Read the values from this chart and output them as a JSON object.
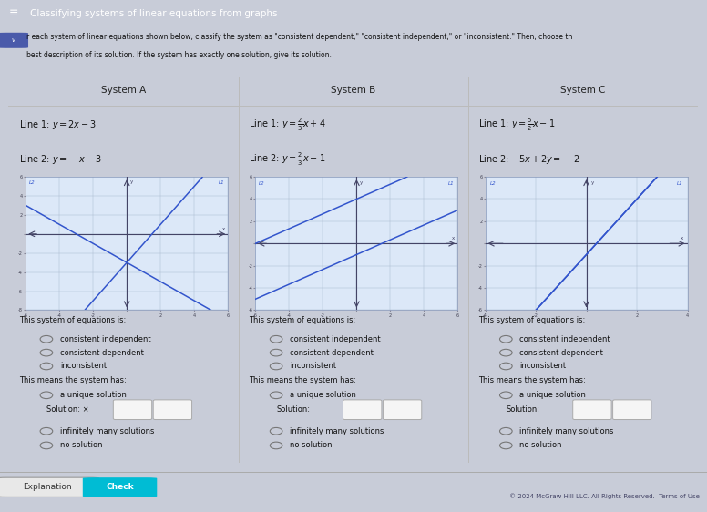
{
  "title": "Classifying systems of linear equations from graphs",
  "title_bar_color": "#2d3b8a",
  "title_text_color": "#ffffff",
  "instr_bg": "#b8c0d8",
  "instr_check_color": "#4a5aaa",
  "main_bg": "#c8ccd8",
  "table_bg": "#ffffff",
  "table_border": "#bbbbbb",
  "systems": [
    {
      "title": "System A",
      "line1_label": "Line 1: $y=2x-3$",
      "line2_label": "Line 2: $y=-x-3$",
      "line1_slope": 2.0,
      "line1_intercept": -3.0,
      "line2_slope": -1.0,
      "line2_intercept": -3.0,
      "graph_xlim": [
        -6,
        6
      ],
      "graph_ylim": [
        -8,
        6
      ],
      "graph_xticks": [
        -6,
        -4,
        -2,
        0,
        2,
        4,
        6
      ],
      "graph_yticks": [
        -8,
        -6,
        -4,
        -2,
        0,
        2,
        4,
        6
      ],
      "solution_x_mark": true
    },
    {
      "title": "System B",
      "line1_label": "Line 1: $y=\\frac{2}{3}x+4$",
      "line2_label": "Line 2: $y=\\frac{2}{3}x-1$",
      "line1_slope": 0.6667,
      "line1_intercept": 4.0,
      "line2_slope": 0.6667,
      "line2_intercept": -1.0,
      "graph_xlim": [
        -6,
        6
      ],
      "graph_ylim": [
        -6,
        6
      ],
      "graph_xticks": [
        -6,
        -4,
        -2,
        0,
        2,
        4,
        6
      ],
      "graph_yticks": [
        -6,
        -4,
        -2,
        0,
        2,
        4,
        6
      ],
      "solution_x_mark": false
    },
    {
      "title": "System C",
      "line1_label": "Line 1: $y=\\frac{5}{2}x-1$",
      "line2_label": "Line 2: $-5x+2y=-2$",
      "line1_slope": 2.5,
      "line1_intercept": -1.0,
      "line2_slope": 2.5,
      "line2_intercept": -1.0,
      "graph_xlim": [
        -4,
        4
      ],
      "graph_ylim": [
        -6,
        6
      ],
      "graph_xticks": [
        -4,
        -2,
        0,
        2,
        4
      ],
      "graph_yticks": [
        -6,
        -4,
        -2,
        0,
        2,
        4,
        6
      ],
      "solution_x_mark": false
    }
  ],
  "options": [
    "consistent independent",
    "consistent dependent",
    "inconsistent"
  ],
  "means_options": [
    "a unique solution",
    "infinitely many solutions",
    "no solution"
  ],
  "footer_text": "© 2024 McGraw Hill LLC. All Rights Reserved.  Terms of Use",
  "explanation_btn_color": "#e8e8e8",
  "check_btn_color": "#00bcd4",
  "graph_bg": "#dce8f8",
  "graph_line_color": "#3355cc",
  "graph_grid_color": "#aabbd0",
  "graph_axis_color": "#444466"
}
